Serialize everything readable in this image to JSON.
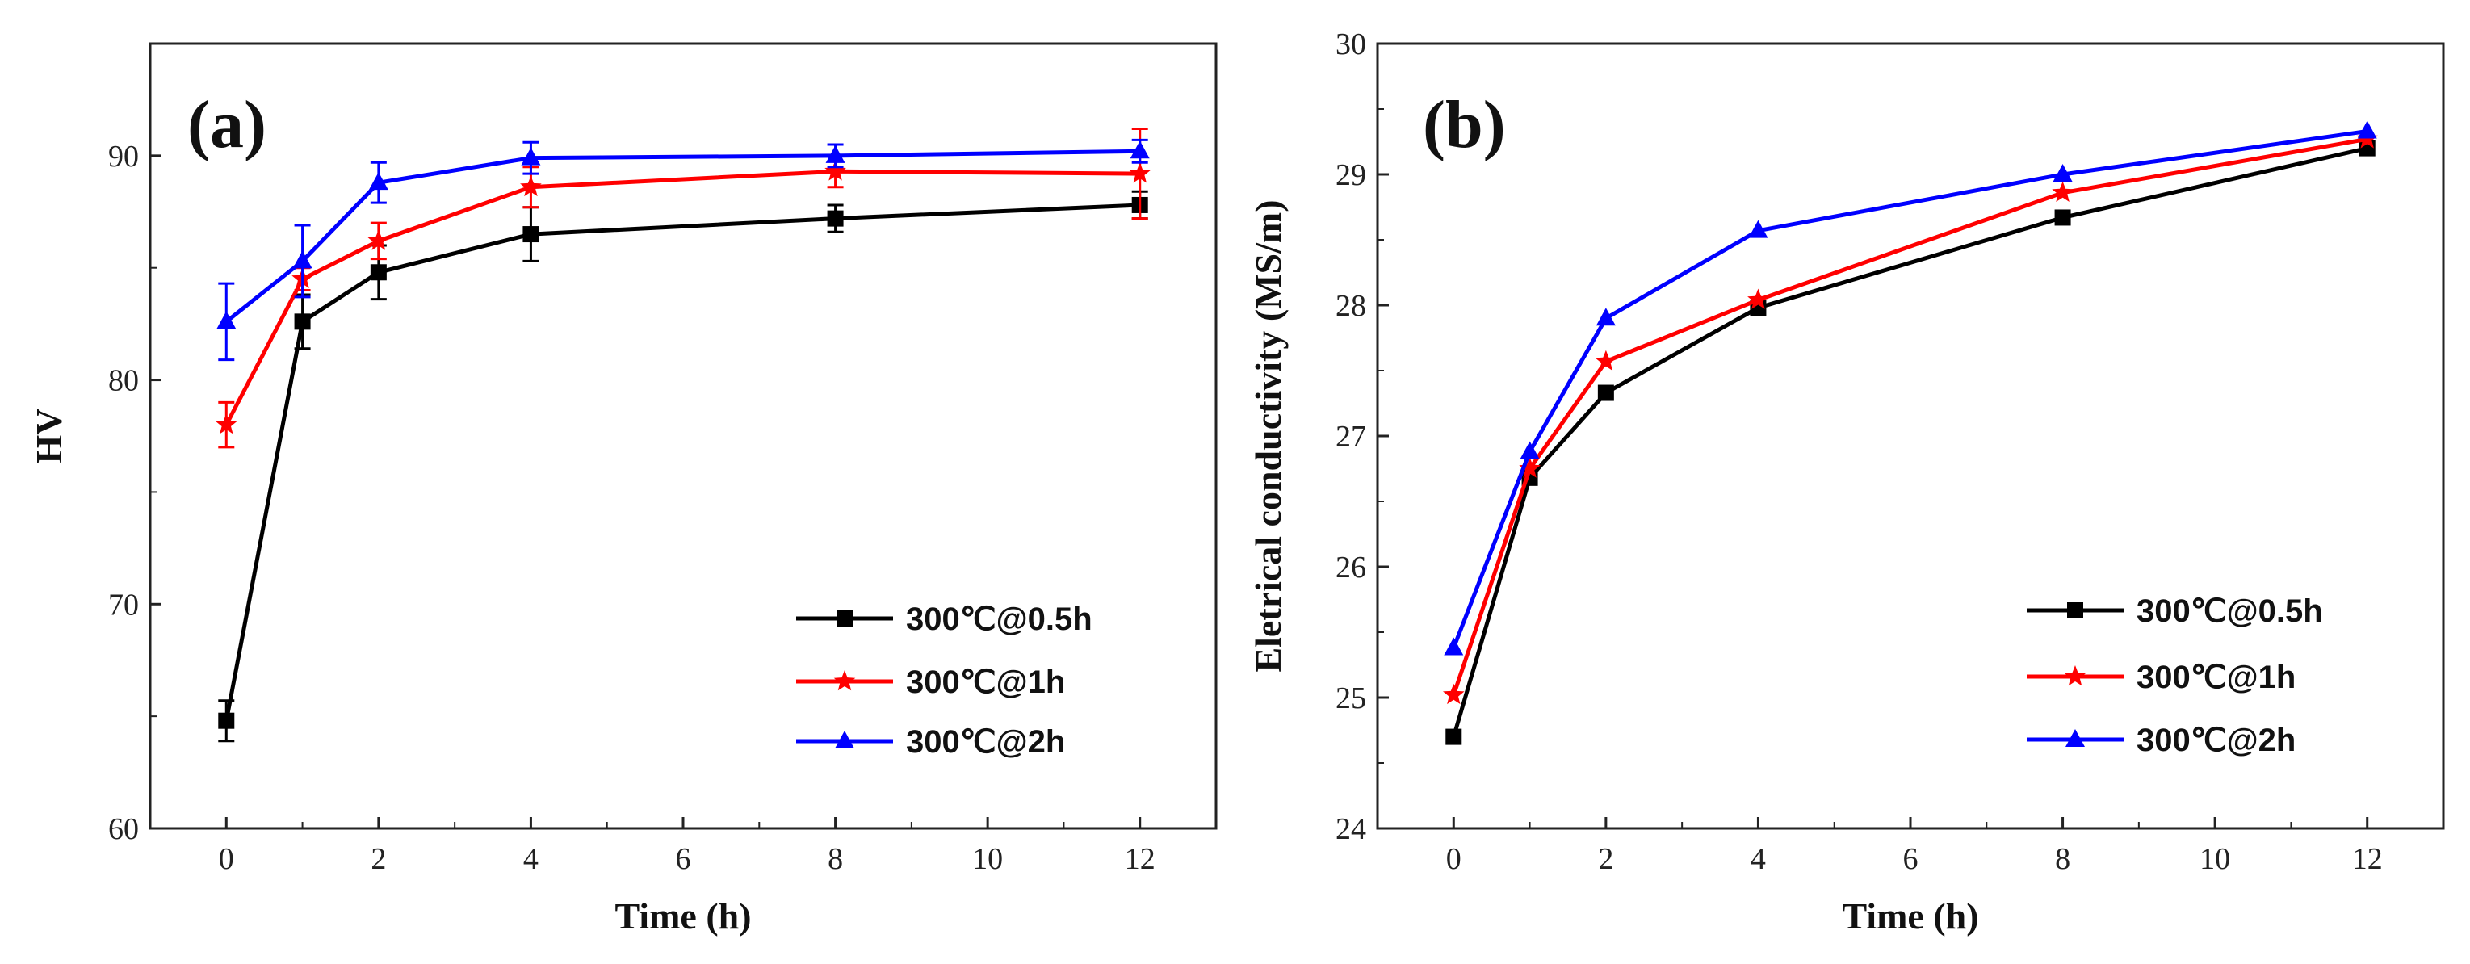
{
  "chart_data": [
    {
      "type": "line",
      "panel_label": "(a)",
      "xlabel": "Time (h)",
      "ylabel": "HV",
      "xlim": [
        -1,
        13
      ],
      "ylim": [
        60,
        95
      ],
      "xticks": [
        0,
        2,
        4,
        6,
        8,
        10,
        12
      ],
      "yticks": [
        60,
        70,
        80,
        90
      ],
      "legend_position": "bottom-right",
      "x": [
        0,
        1,
        2,
        4,
        8,
        12
      ],
      "series": [
        {
          "name": "300℃@0.5h",
          "color": "#000000",
          "marker": "square",
          "values": [
            64.8,
            82.6,
            84.8,
            86.5,
            87.2,
            87.8
          ],
          "errors": [
            0.9,
            1.2,
            1.2,
            1.2,
            0.6,
            0.6
          ]
        },
        {
          "name": "300℃@1h",
          "color": "#ff0000",
          "marker": "star",
          "values": [
            78.0,
            84.5,
            86.2,
            88.6,
            89.3,
            89.2
          ],
          "errors": [
            1.0,
            0.5,
            0.8,
            0.9,
            0.7,
            2.0
          ]
        },
        {
          "name": "300℃@2h",
          "color": "#0000ff",
          "marker": "triangle",
          "values": [
            82.6,
            85.3,
            88.8,
            89.9,
            90.0,
            90.2
          ],
          "errors": [
            1.7,
            1.6,
            0.9,
            0.7,
            0.5,
            0.5
          ]
        }
      ]
    },
    {
      "type": "line",
      "panel_label": "(b)",
      "xlabel": "Time (h)",
      "ylabel": "Eletrical conductivity (MS/m)",
      "xlim": [
        -1,
        13
      ],
      "ylim": [
        24,
        30
      ],
      "xticks": [
        0,
        2,
        4,
        6,
        8,
        10,
        12
      ],
      "yticks": [
        24,
        25,
        26,
        27,
        28,
        29,
        30
      ],
      "legend_position": "bottom-right",
      "x": [
        0,
        1,
        2,
        4,
        8,
        12
      ],
      "series": [
        {
          "name": "300℃@0.5h",
          "color": "#000000",
          "marker": "square",
          "values": [
            24.7,
            26.68,
            27.33,
            27.98,
            28.67,
            29.2
          ]
        },
        {
          "name": "300℃@1h",
          "color": "#ff0000",
          "marker": "star",
          "values": [
            25.02,
            26.75,
            27.57,
            28.04,
            28.86,
            29.27
          ]
        },
        {
          "name": "300℃@2h",
          "color": "#0000ff",
          "marker": "triangle",
          "values": [
            25.38,
            26.88,
            27.9,
            28.57,
            29.0,
            29.33
          ]
        }
      ]
    }
  ]
}
